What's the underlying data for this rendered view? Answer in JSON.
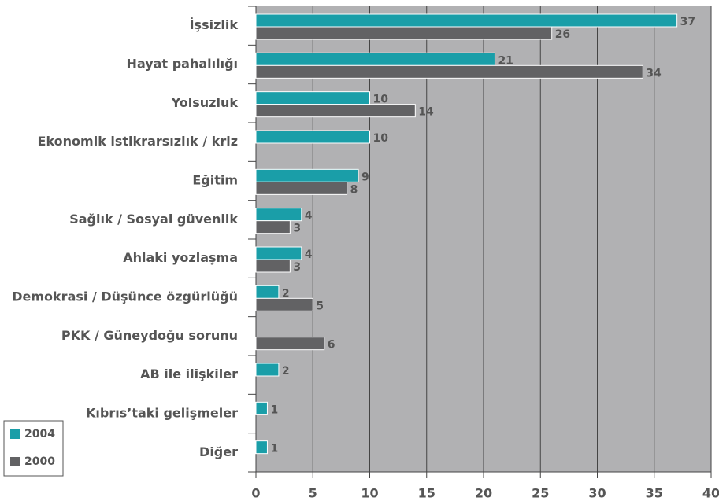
{
  "chart_data": {
    "type": "bar",
    "orientation": "horizontal",
    "categories": [
      "İşsizlik",
      "Hayat pahalılığı",
      "Yolsuzluk",
      "Ekonomik istikrarsızlık / kriz",
      "Eğitim",
      "Sağlık / Sosyal güvenlik",
      "Ahlaki yozlaşma",
      "Demokrasi / Düşünce özgürlüğü",
      "PKK / Güneydoğu sorunu",
      "AB ile ilişkiler",
      "Kıbrıs’taki gelişmeler",
      "Diğer"
    ],
    "series": [
      {
        "name": "2004",
        "color": "#1a9ea8",
        "values": [
          37,
          21,
          10,
          10,
          9,
          4,
          4,
          2,
          null,
          2,
          1,
          1
        ]
      },
      {
        "name": "2000",
        "color": "#626264",
        "values": [
          26,
          34,
          14,
          null,
          8,
          3,
          3,
          5,
          6,
          null,
          null,
          null
        ]
      }
    ],
    "xlim": [
      0,
      40
    ],
    "xticks": [
      0,
      5,
      10,
      15,
      20,
      25,
      30,
      35,
      40
    ],
    "grid": true,
    "legend": "lower left"
  }
}
